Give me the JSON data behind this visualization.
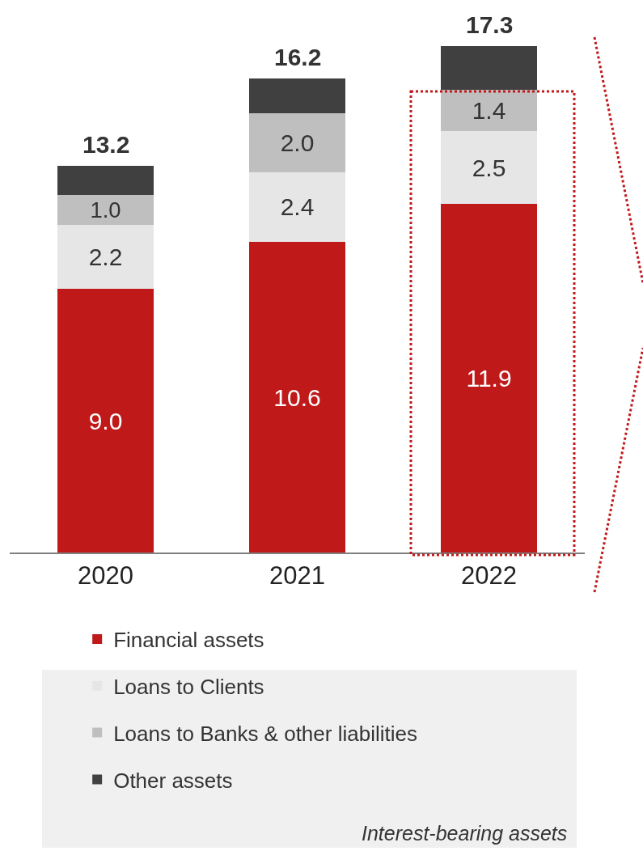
{
  "chart_data": {
    "type": "bar",
    "stacked": true,
    "categories": [
      "2020",
      "2021",
      "2022"
    ],
    "series": [
      {
        "name": "Financial assets",
        "color": "#c0191a",
        "values": [
          9.0,
          10.6,
          11.9
        ],
        "value_labels": [
          "9.0",
          "10.6",
          "11.9"
        ]
      },
      {
        "name": "Loans to Clients",
        "color": "#e6e6e6",
        "values": [
          2.2,
          2.4,
          2.5
        ],
        "value_labels": [
          "2.2",
          "2.4",
          "2.5"
        ]
      },
      {
        "name": "Loans to Banks & other liabilities",
        "color": "#bfbfbf",
        "values": [
          1.0,
          2.0,
          1.4
        ],
        "value_labels": [
          "1.0",
          "2.0",
          "1.4"
        ]
      },
      {
        "name": "Other assets",
        "color": "#404040",
        "values": [
          1.0,
          1.2,
          1.5
        ],
        "value_labels": [
          null,
          null,
          null
        ]
      }
    ],
    "totals": [
      "13.2",
      "16.2",
      "17.3"
    ],
    "annotations": [
      "Interest-bearing assets"
    ],
    "legend": "bottom",
    "grid": false
  }
}
